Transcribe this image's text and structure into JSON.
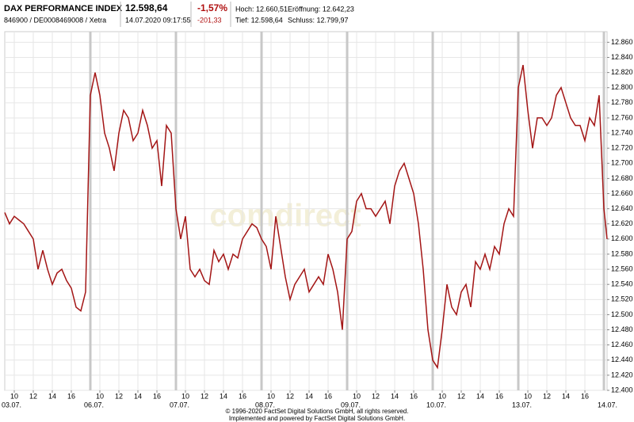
{
  "header": {
    "title": "DAX PERFORMANCE INDEX",
    "subtitle": "846900 / DE0008469008 / Xetra",
    "price": "12.598,64",
    "timestamp": "14.07.2020 09:17:55",
    "change_pct": "-1,57%",
    "change_abs": "-201,33",
    "high": "Hoch: 12.660,51",
    "low": "Tief: 12.598,64",
    "open": "Eröffnung: 12.642,23",
    "close": "Schluss: 12.799,97"
  },
  "chart_data": {
    "type": "line",
    "watermark": "comdirect",
    "color": "#a31515",
    "x": [
      9,
      9.5,
      10,
      10.5,
      11,
      11.5,
      12,
      12.5,
      13,
      13.5,
      14,
      14.5,
      15,
      15.5,
      16,
      16.5,
      17,
      17.5,
      18,
      18.5,
      19,
      19.5,
      20,
      20.5,
      21,
      21.5,
      22,
      22.5,
      23,
      23.5,
      24,
      24.5,
      25,
      25.5,
      26,
      26.5,
      27,
      27.5,
      28,
      28.5,
      29,
      29.5,
      30,
      30.5,
      31,
      31.5,
      32,
      32.5,
      33,
      33.5,
      34,
      34.5,
      35,
      35.5,
      36,
      36.5,
      37,
      37.5,
      38,
      38.5,
      39,
      39.5,
      40,
      40.5,
      41,
      41.5,
      42,
      42.5,
      43,
      43.5,
      44,
      44.5,
      45,
      45.5,
      46,
      46.5,
      47,
      47.5,
      48,
      48.5,
      49,
      49.5,
      50,
      50.5,
      51,
      51.5,
      52,
      52.5,
      53,
      53.5,
      54,
      54.5,
      55,
      55.5,
      56,
      56.5,
      57,
      57.5,
      58,
      58.5,
      59,
      59.5,
      60,
      60.5,
      61,
      61.5,
      62,
      62.5,
      63,
      63.5,
      64,
      64.5,
      65,
      65.5,
      66,
      66.5,
      67,
      67.5,
      68,
      68.5,
      69,
      69.5,
      70,
      70.5,
      71,
      71.5,
      72,
      72.17,
      72.33
    ],
    "values": [
      12635,
      12620,
      12630,
      12625,
      12620,
      12610,
      12600,
      12560,
      12585,
      12560,
      12540,
      12555,
      12560,
      12545,
      12535,
      12510,
      12505,
      12530,
      12790,
      12820,
      12790,
      12740,
      12720,
      12690,
      12740,
      12770,
      12760,
      12730,
      12740,
      12770,
      12750,
      12720,
      12730,
      12670,
      12750,
      12740,
      12640,
      12600,
      12630,
      12560,
      12550,
      12560,
      12545,
      12540,
      12585,
      12570,
      12580,
      12560,
      12580,
      12575,
      12600,
      12610,
      12620,
      12615,
      12600,
      12590,
      12560,
      12630,
      12590,
      12550,
      12520,
      12540,
      12550,
      12560,
      12530,
      12540,
      12550,
      12540,
      12580,
      12560,
      12530,
      12480,
      12600,
      12610,
      12650,
      12660,
      12640,
      12640,
      12630,
      12640,
      12650,
      12620,
      12670,
      12690,
      12700,
      12680,
      12660,
      12620,
      12560,
      12480,
      12440,
      12430,
      12480,
      12540,
      12510,
      12500,
      12530,
      12540,
      12510,
      12570,
      12560,
      12580,
      12560,
      12590,
      12580,
      12620,
      12640,
      12630,
      12800,
      12830,
      12770,
      12720,
      12760,
      12760,
      12750,
      12760,
      12790,
      12800,
      12780,
      12760,
      12750,
      12750,
      12730,
      12760,
      12750,
      12790,
      12640,
      12620,
      12600
    ],
    "xlim": [
      9,
      72.33
    ],
    "xticks": [
      {
        "value": 10,
        "label": "10"
      },
      {
        "value": 12,
        "label": "12"
      },
      {
        "value": 14,
        "label": "14"
      },
      {
        "value": 16,
        "label": "16"
      },
      {
        "value": 19,
        "label": "10"
      },
      {
        "value": 21,
        "label": "12"
      },
      {
        "value": 23,
        "label": "14"
      },
      {
        "value": 25,
        "label": "16"
      },
      {
        "value": 28,
        "label": "10"
      },
      {
        "value": 30,
        "label": "12"
      },
      {
        "value": 32,
        "label": "14"
      },
      {
        "value": 34,
        "label": "16"
      },
      {
        "value": 37,
        "label": "10"
      },
      {
        "value": 39,
        "label": "12"
      },
      {
        "value": 41,
        "label": "14"
      },
      {
        "value": 43,
        "label": "16"
      },
      {
        "value": 46,
        "label": "10"
      },
      {
        "value": 48,
        "label": "12"
      },
      {
        "value": 50,
        "label": "14"
      },
      {
        "value": 52,
        "label": "16"
      },
      {
        "value": 55,
        "label": "10"
      },
      {
        "value": 57,
        "label": "12"
      },
      {
        "value": 59,
        "label": "14"
      },
      {
        "value": 61,
        "label": "16"
      },
      {
        "value": 64,
        "label": "10"
      },
      {
        "value": 66,
        "label": "12"
      },
      {
        "value": 68,
        "label": "14"
      },
      {
        "value": 70,
        "label": "16"
      }
    ],
    "day_ticks": [
      {
        "value": 9,
        "label": "03.07."
      },
      {
        "value": 18,
        "label": "06.07."
      },
      {
        "value": 27,
        "label": "07.07."
      },
      {
        "value": 36,
        "label": "08.07."
      },
      {
        "value": 45,
        "label": "09.07."
      },
      {
        "value": 54,
        "label": "10.07."
      },
      {
        "value": 63,
        "label": "13.07."
      },
      {
        "value": 72,
        "label": "14.07."
      }
    ],
    "ylim": [
      12400,
      12874
    ],
    "yticks": [
      {
        "value": 12400,
        "label": "12.400"
      },
      {
        "value": 12420,
        "label": "12.420"
      },
      {
        "value": 12440,
        "label": "12.440"
      },
      {
        "value": 12460,
        "label": "12.460"
      },
      {
        "value": 12480,
        "label": "12.480"
      },
      {
        "value": 12500,
        "label": "12.500"
      },
      {
        "value": 12520,
        "label": "12.520"
      },
      {
        "value": 12540,
        "label": "12.540"
      },
      {
        "value": 12560,
        "label": "12.560"
      },
      {
        "value": 12580,
        "label": "12.580"
      },
      {
        "value": 12600,
        "label": "12.600"
      },
      {
        "value": 12620,
        "label": "12.620"
      },
      {
        "value": 12640,
        "label": "12.640"
      },
      {
        "value": 12660,
        "label": "12.660"
      },
      {
        "value": 12680,
        "label": "12.680"
      },
      {
        "value": 12700,
        "label": "12.700"
      },
      {
        "value": 12720,
        "label": "12.720"
      },
      {
        "value": 12740,
        "label": "12.740"
      },
      {
        "value": 12760,
        "label": "12.760"
      },
      {
        "value": 12780,
        "label": "12.780"
      },
      {
        "value": 12800,
        "label": "12.800"
      },
      {
        "value": 12820,
        "label": "12.820"
      },
      {
        "value": 12840,
        "label": "12.840"
      },
      {
        "value": 12860,
        "label": "12.860"
      }
    ],
    "grid": true
  },
  "footer": {
    "copyright": "© 1996-2020 FactSet Digital Solutions GmbH, all rights reserved.",
    "powered": "Implemented and powered by FactSet Digital Solutions GmbH."
  }
}
